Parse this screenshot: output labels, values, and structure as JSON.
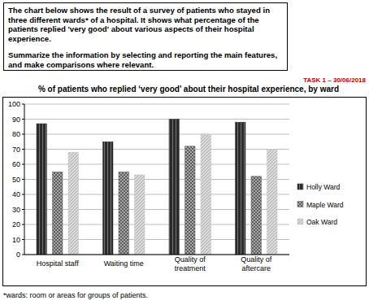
{
  "prompt": [
    "The chart below shows the result of a survey of patients who stayed in three different wards* of a hospital. It shows what percentage of the patients replied 'very good' about various aspects of their hospital experience.",
    "Summarize the information by selecting and reporting the main features, and make comparisons where relevant."
  ],
  "task_label": "TASK 1 – 30/06/2018",
  "footnote": "*wards: room or areas for groups of patients.",
  "chart_data": {
    "type": "bar",
    "title": "% of patients who replied ‘very good’ about their hospital experience, by ward",
    "categories": [
      "Hospital staff",
      "Waiting time",
      "Quality of treatment",
      "Quality of aftercare"
    ],
    "series": [
      {
        "name": "Holly Ward",
        "color": "#2b2b2b",
        "values": [
          87,
          75,
          90,
          88
        ]
      },
      {
        "name": "Maple Ward",
        "color": "#5e5e5e",
        "values": [
          55,
          55,
          72,
          52
        ]
      },
      {
        "name": "Oak Ward",
        "color": "#c4c4c4",
        "values": [
          68,
          53,
          80,
          70
        ]
      }
    ],
    "ylim": [
      0,
      100
    ],
    "yticks": [
      0,
      10,
      20,
      30,
      40,
      50,
      60,
      70,
      80,
      90,
      100
    ],
    "grid": true,
    "legend": "right"
  }
}
